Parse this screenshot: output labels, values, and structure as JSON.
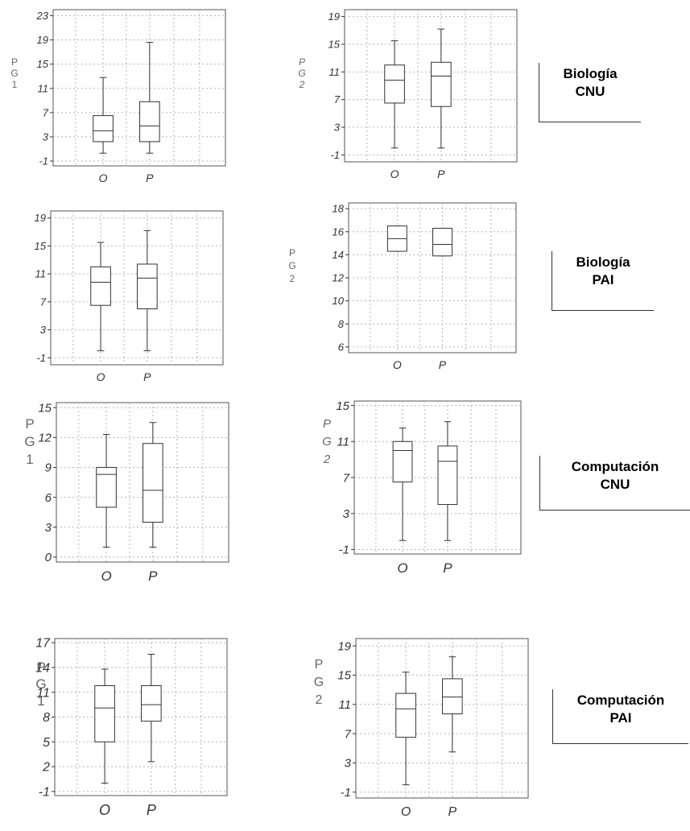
{
  "chart_data": [
    {
      "type": "boxplot",
      "ylabel": "P\nG\n1",
      "yticks": [
        -1,
        3,
        7,
        11,
        15,
        19,
        23
      ],
      "ylim": [
        -1.8,
        24
      ],
      "categories": [
        "O",
        "P"
      ],
      "boxes": [
        {
          "min": 0.3,
          "q1": 2.2,
          "median": 4.0,
          "q3": 6.5,
          "max": 12.8
        },
        {
          "min": 0.3,
          "q1": 2.2,
          "median": 4.8,
          "q3": 8.8,
          "max": 18.6
        }
      ]
    },
    {
      "type": "boxplot",
      "ylabel": "P\nG\n2",
      "yticks": [
        -1,
        3,
        7,
        11,
        15,
        19
      ],
      "ylim": [
        -2,
        20
      ],
      "categories": [
        "O",
        "P"
      ],
      "boxes": [
        {
          "min": 0.0,
          "q1": 6.5,
          "median": 9.8,
          "q3": 12.0,
          "max": 15.5
        },
        {
          "min": 0.0,
          "q1": 6.0,
          "median": 10.4,
          "q3": 12.4,
          "max": 17.2
        }
      ]
    },
    {
      "type": "boxplot",
      "ylabel": "",
      "yticks": [
        -1,
        3,
        7,
        11,
        15,
        19
      ],
      "ylim": [
        -2,
        20
      ],
      "categories": [
        "O",
        "P"
      ],
      "boxes": [
        {
          "min": 0.0,
          "q1": 6.5,
          "median": 9.8,
          "q3": 12.0,
          "max": 15.5
        },
        {
          "min": 0.0,
          "q1": 6.0,
          "median": 10.4,
          "q3": 12.4,
          "max": 17.2
        }
      ]
    },
    {
      "type": "boxplot",
      "ylabel": "P\nG\n2",
      "yticks": [
        6,
        8,
        10,
        12,
        14,
        16,
        18
      ],
      "ylim": [
        5.5,
        18.5
      ],
      "categories": [
        "O",
        "P"
      ],
      "boxes": [
        {
          "min": 14.3,
          "q1": 14.3,
          "median": 15.4,
          "q3": 16.5,
          "max": 16.5
        },
        {
          "min": 13.9,
          "q1": 13.9,
          "median": 14.9,
          "q3": 16.3,
          "max": 16.3
        }
      ]
    },
    {
      "type": "boxplot",
      "ylabel": "P\nG\n1",
      "yticks": [
        0,
        3,
        6,
        9,
        12,
        15
      ],
      "ylim": [
        -0.5,
        15.5
      ],
      "categories": [
        "O",
        "P"
      ],
      "boxes": [
        {
          "min": 1.0,
          "q1": 5.0,
          "median": 8.3,
          "q3": 9.0,
          "max": 12.3
        },
        {
          "min": 1.0,
          "q1": 3.5,
          "median": 6.7,
          "q3": 11.4,
          "max": 13.5
        }
      ]
    },
    {
      "type": "boxplot",
      "ylabel": "P\nG\n2",
      "yticks": [
        -1,
        3,
        7,
        11,
        15
      ],
      "ylim": [
        -1.5,
        15.5
      ],
      "categories": [
        "O",
        "P"
      ],
      "boxes": [
        {
          "min": 0.0,
          "q1": 6.5,
          "median": 10.0,
          "q3": 11.0,
          "max": 12.5
        },
        {
          "min": 0.0,
          "q1": 4.0,
          "median": 8.8,
          "q3": 10.5,
          "max": 13.2
        }
      ]
    },
    {
      "type": "boxplot",
      "ylabel": "P\nG\n1",
      "yticks": [
        -1,
        2,
        5,
        8,
        11,
        14,
        17
      ],
      "ylim": [
        -1.5,
        17.5
      ],
      "categories": [
        "O",
        "P"
      ],
      "boxes": [
        {
          "min": 0.0,
          "q1": 5.0,
          "median": 9.1,
          "q3": 11.8,
          "max": 13.8
        },
        {
          "min": 2.6,
          "q1": 7.5,
          "median": 9.5,
          "q3": 11.8,
          "max": 15.6
        }
      ]
    },
    {
      "type": "boxplot",
      "ylabel": "P\nG\n2",
      "yticks": [
        -1,
        3,
        7,
        11,
        15,
        19
      ],
      "ylim": [
        -1.8,
        20
      ],
      "categories": [
        "O",
        "P"
      ],
      "boxes": [
        {
          "min": 0.0,
          "q1": 6.5,
          "median": 10.4,
          "q3": 12.5,
          "max": 15.4
        },
        {
          "min": 4.5,
          "q1": 9.7,
          "median": 12.0,
          "q3": 14.5,
          "max": 17.5
        }
      ]
    }
  ],
  "labels": [
    {
      "line1": "Biología",
      "line2": "CNU"
    },
    {
      "line1": "Biología",
      "line2": "PAI"
    },
    {
      "line1": "Computación",
      "line2": "CNU"
    },
    {
      "line1": "Computación",
      "line2": "PAI"
    }
  ]
}
